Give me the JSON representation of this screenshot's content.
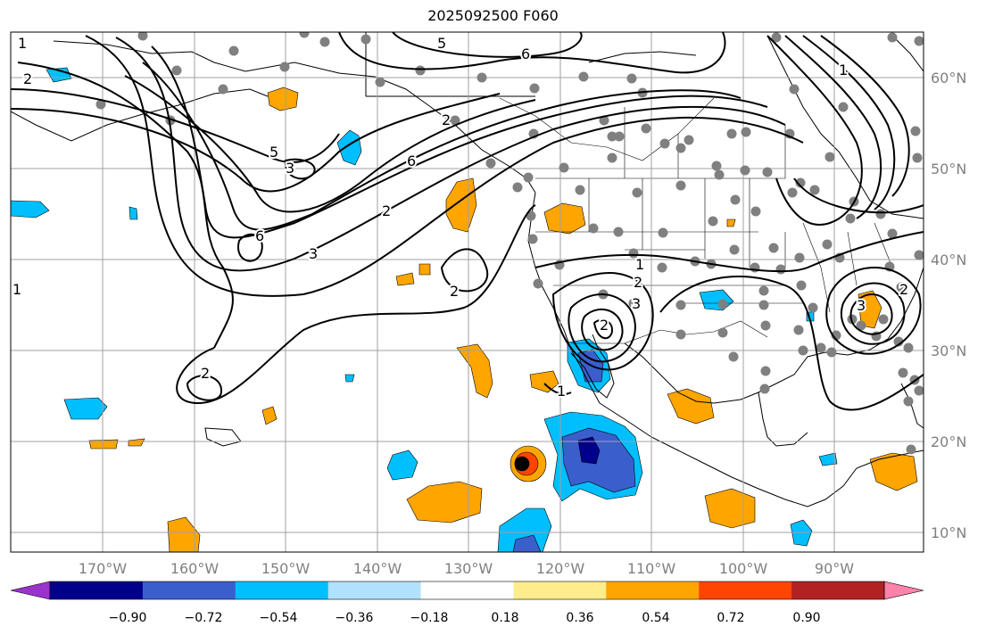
{
  "title": "2025092500 F060",
  "longitude_ticks": [
    "170°W",
    "160°W",
    "150°W",
    "140°W",
    "130°W",
    "120°W",
    "110°W",
    "100°W",
    "90°W"
  ],
  "latitude_ticks": [
    "60°N",
    "50°N",
    "40°N",
    "30°N",
    "20°N",
    "10°N"
  ],
  "colorbar": {
    "labels": [
      "−0.90",
      "−0.72",
      "−0.54",
      "−0.36",
      "−0.18",
      "0.18",
      "0.36",
      "0.54",
      "0.72",
      "0.90"
    ],
    "colors": [
      "#9a32cd",
      "#00008b",
      "#3a5fcd",
      "#00bfff",
      "#b0e2ff",
      "#ffffff",
      "#ffec8b",
      "#ffa500",
      "#ff4500",
      "#b22222",
      "#ff82ab"
    ]
  },
  "contour_labels": [
    "1",
    "2",
    "5",
    "6",
    "2",
    "5",
    "3",
    "6",
    "2",
    "6",
    "3",
    "2",
    "2",
    "1",
    "2",
    "3",
    "2",
    "1",
    "3",
    "1",
    "2",
    "1"
  ],
  "colors": {
    "contour": "#000000",
    "station": "#808080",
    "grid": "#a0a0a0",
    "coast": "#000000"
  }
}
